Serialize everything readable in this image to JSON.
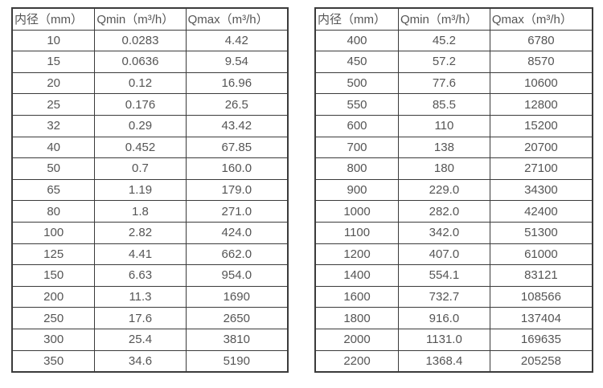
{
  "colors": {
    "background": "#ffffff",
    "border": "#3b3b3b",
    "text": "#555555"
  },
  "tables": [
    {
      "name": "flow-table-small-diameters",
      "headers": [
        "内径（mm）",
        "Qmin（m³/h）",
        "Qmax（m³/h）"
      ],
      "rows": [
        [
          "10",
          "0.0283",
          "4.42"
        ],
        [
          "15",
          "0.0636",
          "9.54"
        ],
        [
          "20",
          "0.12",
          "16.96"
        ],
        [
          "25",
          "0.176",
          "26.5"
        ],
        [
          "32",
          "0.29",
          "43.42"
        ],
        [
          "40",
          "0.452",
          "67.85"
        ],
        [
          "50",
          "0.7",
          "160.0"
        ],
        [
          "65",
          "1.19",
          "179.0"
        ],
        [
          "80",
          "1.8",
          "271.0"
        ],
        [
          "100",
          "2.82",
          "424.0"
        ],
        [
          "125",
          "4.41",
          "662.0"
        ],
        [
          "150",
          "6.63",
          "954.0"
        ],
        [
          "200",
          "11.3",
          "1690"
        ],
        [
          "250",
          "17.6",
          "2650"
        ],
        [
          "300",
          "25.4",
          "3810"
        ],
        [
          "350",
          "34.6",
          "5190"
        ]
      ]
    },
    {
      "name": "flow-table-large-diameters",
      "headers": [
        "内径（mm）",
        "Qmin（m³/h）",
        "Qmax（m³/h）"
      ],
      "rows": [
        [
          "400",
          "45.2",
          "6780"
        ],
        [
          "450",
          "57.2",
          "8570"
        ],
        [
          "500",
          "77.6",
          "10600"
        ],
        [
          "550",
          "85.5",
          "12800"
        ],
        [
          "600",
          "110",
          "15200"
        ],
        [
          "700",
          "138",
          "20700"
        ],
        [
          "800",
          "180",
          "27100"
        ],
        [
          "900",
          "229.0",
          "34300"
        ],
        [
          "1000",
          "282.0",
          "42400"
        ],
        [
          "1100",
          "342.0",
          "51300"
        ],
        [
          "1200",
          "407.0",
          "61000"
        ],
        [
          "1400",
          "554.1",
          "83121"
        ],
        [
          "1600",
          "732.7",
          "108566"
        ],
        [
          "1800",
          "916.0",
          "137404"
        ],
        [
          "2000",
          "1131.0",
          "169635"
        ],
        [
          "2200",
          "1368.4",
          "205258"
        ]
      ]
    }
  ]
}
